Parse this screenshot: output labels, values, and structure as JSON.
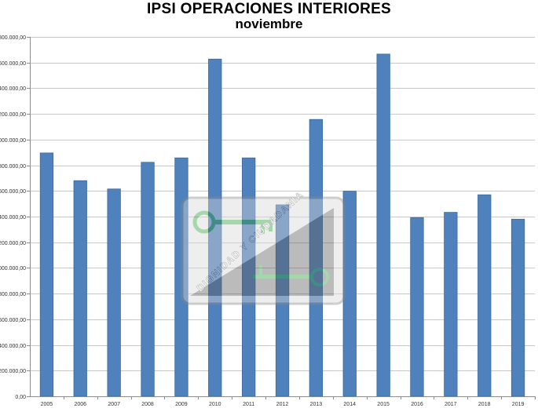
{
  "chart_data": {
    "type": "bar",
    "title": "IPSI OPERACIONES INTERIORES",
    "subtitle": "noviembre",
    "xlabel": "",
    "ylabel": "",
    "categories": [
      "2005",
      "2006",
      "2007",
      "2008",
      "2009",
      "2010",
      "2011",
      "2012",
      "2013",
      "2014",
      "2015",
      "2016",
      "2017",
      "2018",
      "2019"
    ],
    "values": [
      1896000,
      1680000,
      1615000,
      1823000,
      1857000,
      2627000,
      1857000,
      1492000,
      2157000,
      1598000,
      2666000,
      1392000,
      1433000,
      1570000,
      1380000
    ],
    "ylim": [
      0,
      2800000
    ],
    "y_ticks": [
      "0,00",
      "200.000,00",
      "400.000,00",
      "600.000,00",
      "800.000,00",
      "000.000,00",
      "200.000,00",
      "400.000,00",
      "600.000,00",
      "800.000,00",
      "000.000,00",
      "200.000,00",
      "400.000,00",
      "600.000,00",
      "800.000,00"
    ],
    "y_tick_values": [
      0,
      200000,
      400000,
      600000,
      800000,
      1000000,
      1200000,
      1400000,
      1600000,
      1800000,
      2000000,
      2200000,
      2400000,
      2600000,
      2800000
    ],
    "grid": true,
    "legend": "none",
    "colors": {
      "bar": "#4f81bd",
      "bar_edge": "#3a6a9e",
      "grid": "#c8c8c8",
      "axis": "#8c8c8c"
    }
  },
  "watermark": {
    "text": "DIGNIDAD Y CIUDADANIA",
    "icon": "key-icon"
  }
}
